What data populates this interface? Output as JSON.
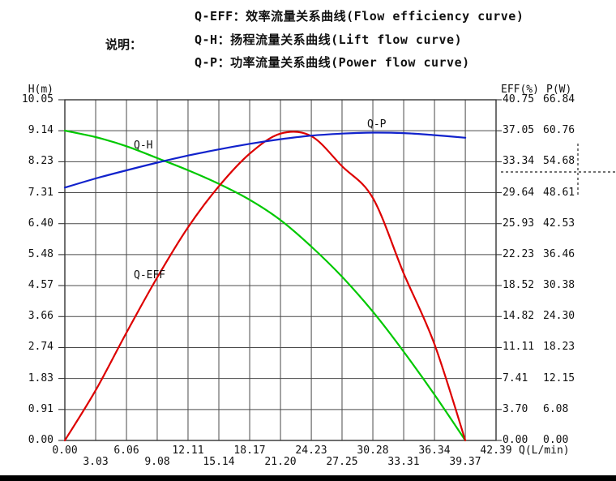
{
  "legend": {
    "note_label": "说明：",
    "items": [
      {
        "label": "Q-EFF：效率流量关系曲线(Flow efficiency curve)"
      },
      {
        "label": "Q-H：扬程流量关系曲线(Lift flow curve)"
      },
      {
        "label": "Q-P：功率流量关系曲线(Power flow curve)"
      }
    ]
  },
  "chart_data": {
    "type": "line",
    "grid": true,
    "background": "#ffffff",
    "grid_color": "#4a4a4a",
    "x_axis": {
      "label": "Q(L/min)",
      "range": [
        0,
        42.39
      ],
      "ticks": [
        "0.00",
        "3.03",
        "6.06",
        "9.08",
        "12.11",
        "15.14",
        "18.17",
        "21.20",
        "24.23",
        "27.25",
        "30.28",
        "33.31",
        "36.34",
        "39.37",
        "42.39"
      ]
    },
    "y_axes": [
      {
        "label": "H(m)",
        "side": "left",
        "range": [
          0,
          10.05
        ],
        "ticks": [
          "0.00",
          "0.91",
          "1.83",
          "2.74",
          "3.66",
          "4.57",
          "5.48",
          "6.40",
          "7.31",
          "8.23",
          "9.14",
          "10.05"
        ]
      },
      {
        "label": "EFF(%)",
        "side": "right",
        "range": [
          0,
          40.75
        ],
        "ticks": [
          "0.00",
          "3.70",
          "7.41",
          "11.11",
          "14.82",
          "18.52",
          "22.23",
          "25.93",
          "29.64",
          "33.34",
          "37.05",
          "40.75"
        ]
      },
      {
        "label": "P(W)",
        "side": "right",
        "range": [
          0,
          66.84
        ],
        "ticks": [
          "0.00",
          "6.08",
          "12.15",
          "18.23",
          "24.30",
          "30.38",
          "36.46",
          "42.53",
          "48.61",
          "54.68",
          "60.76",
          "66.84"
        ]
      }
    ],
    "series": [
      {
        "name": "Q-H",
        "axis": "H(m)",
        "color": "#00c800",
        "scale_max": 10.05,
        "x": [
          0,
          3.03,
          6.06,
          9.08,
          12.11,
          15.14,
          18.17,
          21.2,
          24.23,
          27.25,
          30.28,
          33.31,
          36.34,
          39.37
        ],
        "values": [
          9.14,
          8.95,
          8.68,
          8.33,
          7.97,
          7.57,
          7.1,
          6.5,
          5.72,
          4.83,
          3.8,
          2.62,
          1.35,
          0.0
        ]
      },
      {
        "name": "Q-EFF",
        "axis": "EFF(%)",
        "color": "#dd0000",
        "scale_max": 40.75,
        "x": [
          0,
          3.03,
          6.06,
          9.08,
          12.11,
          15.14,
          18.17,
          21.2,
          24.23,
          27.25,
          30.28,
          33.31,
          36.34,
          39.37
        ],
        "values": [
          0.0,
          6.0,
          12.9,
          19.5,
          25.5,
          30.4,
          34.3,
          36.7,
          36.4,
          32.8,
          29.0,
          20.0,
          11.5,
          0.0
        ]
      },
      {
        "name": "Q-P",
        "axis": "P(W)",
        "color": "#1122cc",
        "scale_max": 66.84,
        "x": [
          0,
          3.03,
          6.06,
          9.08,
          12.11,
          15.14,
          18.17,
          21.2,
          24.23,
          27.25,
          30.28,
          33.31,
          36.34,
          39.37
        ],
        "values": [
          49.6,
          51.4,
          53.0,
          54.5,
          55.9,
          57.1,
          58.2,
          59.1,
          59.8,
          60.2,
          60.4,
          60.3,
          59.9,
          59.4
        ]
      }
    ]
  }
}
